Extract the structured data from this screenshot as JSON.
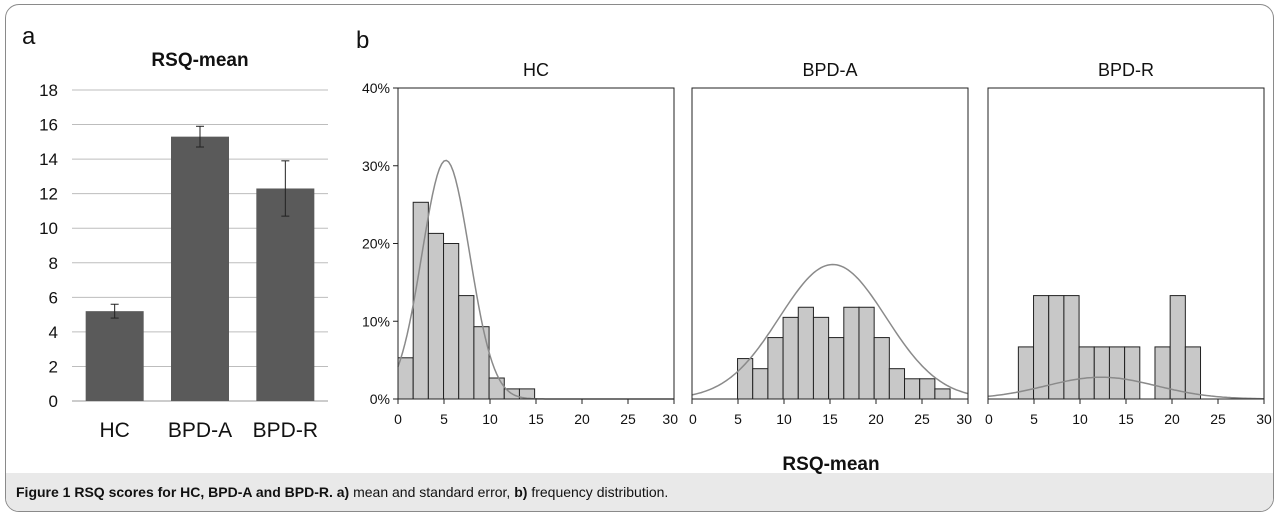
{
  "panel_labels": {
    "a": "a",
    "b": "b"
  },
  "caption": {
    "figure_label": "Figure 1",
    "title": "RSQ scores for HC, BPD-A and BPD-R.",
    "part_a_label": "a)",
    "part_a_text": "mean and standard error,",
    "part_b_label": "b)",
    "part_b_text": "frequency distribution."
  },
  "chart_data": [
    {
      "type": "bar",
      "title": "RSQ-mean",
      "categories": [
        "HC",
        "BPD-A",
        "BPD-R"
      ],
      "values": [
        5.2,
        15.3,
        12.3
      ],
      "errors": [
        0.4,
        0.6,
        1.6
      ],
      "ylim": [
        0,
        18
      ],
      "yticks": [
        0,
        2,
        4,
        6,
        8,
        10,
        12,
        14,
        16,
        18
      ],
      "grid": true,
      "colors": {
        "bar": "#5a5a5a",
        "grid": "#bdbdbd"
      }
    },
    {
      "type": "bar",
      "subtype": "histogram",
      "xlabel": "RSQ-mean",
      "ylim": [
        0,
        40
      ],
      "yticks": [
        "0%",
        "10%",
        "20%",
        "30%",
        "40%"
      ],
      "ytick_values": [
        0,
        10,
        20,
        30,
        40
      ],
      "xlim": [
        0,
        30
      ],
      "xticks": [
        0,
        5,
        10,
        15,
        20,
        25,
        30
      ],
      "bin_width": 1.65,
      "colors": {
        "bar": "#c8c8c8",
        "curve": "#8a8a8a"
      },
      "panels": [
        {
          "title": "HC",
          "bin_starts": [
            0,
            1.65,
            3.3,
            4.95,
            6.6,
            8.25,
            9.9,
            11.55,
            13.2
          ],
          "values": [
            5.3,
            25.3,
            21.3,
            20.0,
            13.3,
            9.3,
            2.7,
            1.3,
            1.3
          ],
          "normal_curve": {
            "mean": 5.2,
            "peak": 30.7,
            "sd": 2.6
          }
        },
        {
          "title": "BPD-A",
          "bin_starts": [
            4.95,
            6.6,
            8.25,
            9.9,
            11.55,
            13.2,
            14.85,
            16.5,
            18.15,
            19.8,
            21.45,
            23.1,
            24.75,
            26.4
          ],
          "values": [
            5.2,
            3.9,
            7.9,
            10.5,
            11.8,
            10.5,
            7.9,
            11.8,
            11.8,
            7.9,
            3.9,
            2.6,
            2.6,
            1.3
          ],
          "normal_curve": {
            "mean": 15.3,
            "peak": 17.3,
            "sd": 5.8
          }
        },
        {
          "title": "BPD-R",
          "bin_starts": [
            3.3,
            4.95,
            6.6,
            8.25,
            9.9,
            11.55,
            13.2,
            14.85,
            18.15,
            19.8,
            21.45
          ],
          "values": [
            6.7,
            13.3,
            13.3,
            13.3,
            6.7,
            6.7,
            6.7,
            6.7,
            6.7,
            13.3,
            6.7
          ],
          "normal_curve": {
            "mean": 12.3,
            "peak": 2.8,
            "sd": 6.0
          }
        }
      ]
    }
  ]
}
